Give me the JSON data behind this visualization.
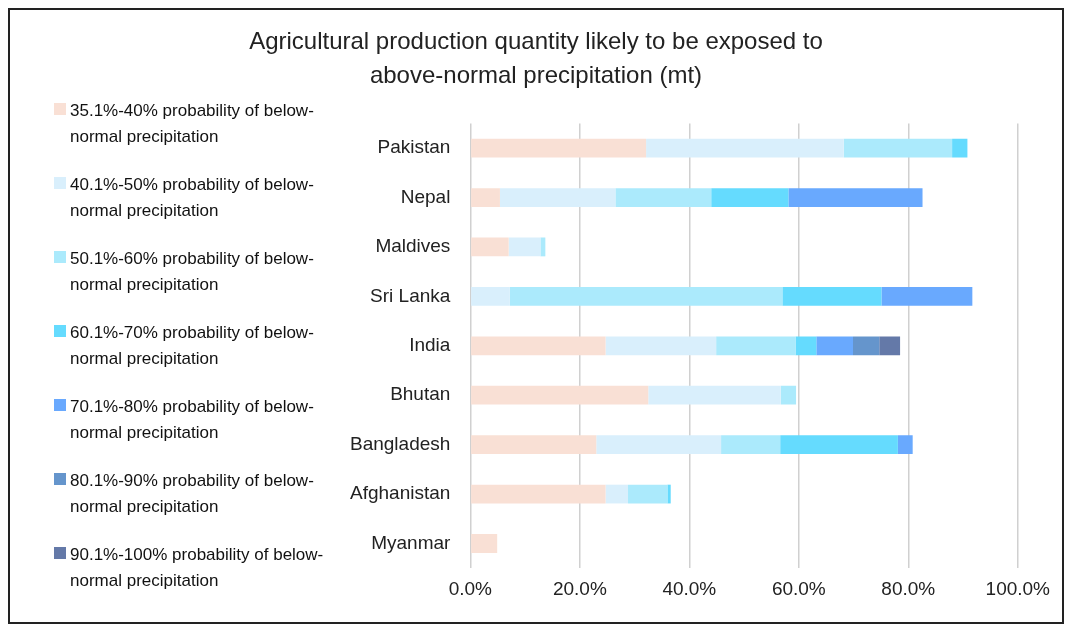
{
  "chart_data": {
    "type": "bar",
    "orientation": "horizontal",
    "stacked": true,
    "title": "Agricultural production quantity likely to be exposed to above-normal precipitation (mt)",
    "categories": [
      "Pakistan",
      "Nepal",
      "Maldives",
      "Sri Lanka",
      "India",
      "Bhutan",
      "Bangladesh",
      "Afghanistan",
      "Myanmar"
    ],
    "series": [
      {
        "name": "35.1%-40% probability of below-normal precipitation",
        "color": "#f9e0d5",
        "values": [
          32.1,
          5.4,
          7.0,
          null,
          24.7,
          32.5,
          23.0,
          24.7,
          4.9
        ]
      },
      {
        "name": "40.1%-50% probability of below-normal precipitation",
        "color": "#d9effc",
        "values": [
          36.1,
          21.1,
          5.8,
          7.2,
          20.2,
          24.2,
          22.8,
          4.1,
          null
        ]
      },
      {
        "name": "50.1%-60% probability of below-normal precipitation",
        "color": "#abeafc",
        "values": [
          19.8,
          17.5,
          0.9,
          49.8,
          14.5,
          2.8,
          10.8,
          7.2,
          null
        ]
      },
      {
        "name": "60.1%-70% probability of below-normal precipitation",
        "color": "#65dbfe",
        "values": [
          2.8,
          14.1,
          null,
          18.1,
          3.8,
          null,
          21.5,
          0.6,
          null
        ]
      },
      {
        "name": "70.1%-80% probability of below-normal precipitation",
        "color": "#69a9fe",
        "values": [
          null,
          24.5,
          null,
          16.6,
          6.7,
          null,
          2.7,
          null,
          null
        ]
      },
      {
        "name": "80.1%-90% probability of below-normal precipitation",
        "color": "#6595cc",
        "values": [
          null,
          null,
          null,
          null,
          4.8,
          null,
          null,
          null,
          null
        ]
      },
      {
        "name": "90.1%-100% probability of below-normal precipitation",
        "color": "#6479a8",
        "values": [
          null,
          null,
          null,
          null,
          3.8,
          null,
          null,
          null,
          null
        ]
      }
    ],
    "xlim": [
      0,
      100
    ],
    "xticks": [
      {
        "value": 0,
        "label": "0.0%"
      },
      {
        "value": 20,
        "label": "20.0%"
      },
      {
        "value": 40,
        "label": "40.0%"
      },
      {
        "value": 60,
        "label": "60.0%"
      },
      {
        "value": 80,
        "label": "80.0%"
      },
      {
        "value": 100,
        "label": "100.0%"
      }
    ],
    "grid": "x",
    "legend": "left"
  }
}
